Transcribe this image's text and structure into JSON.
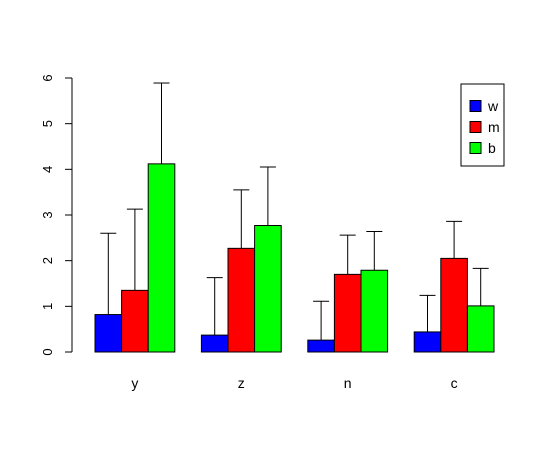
{
  "chart_data": {
    "type": "bar",
    "categories": [
      "y",
      "z",
      "n",
      "c"
    ],
    "series": [
      {
        "name": "w",
        "color": "#0000FF",
        "values": [
          0.82,
          0.37,
          0.26,
          0.44
        ],
        "error_upper": [
          2.6,
          1.63,
          1.11,
          1.24
        ]
      },
      {
        "name": "m",
        "color": "#FF0000",
        "values": [
          1.35,
          2.27,
          1.7,
          2.05
        ],
        "error_upper": [
          3.13,
          3.55,
          2.56,
          2.86
        ]
      },
      {
        "name": "b",
        "color": "#00FF00",
        "values": [
          4.12,
          2.77,
          1.79,
          1.01
        ],
        "error_upper": [
          5.89,
          4.05,
          2.64,
          1.83
        ]
      }
    ],
    "yticks": [
      0,
      1,
      2,
      3,
      4,
      5,
      6
    ],
    "ylim": [
      0,
      6
    ],
    "title": "",
    "xlabel": "",
    "ylabel": "",
    "legend_position": "top-right",
    "grid": false
  }
}
